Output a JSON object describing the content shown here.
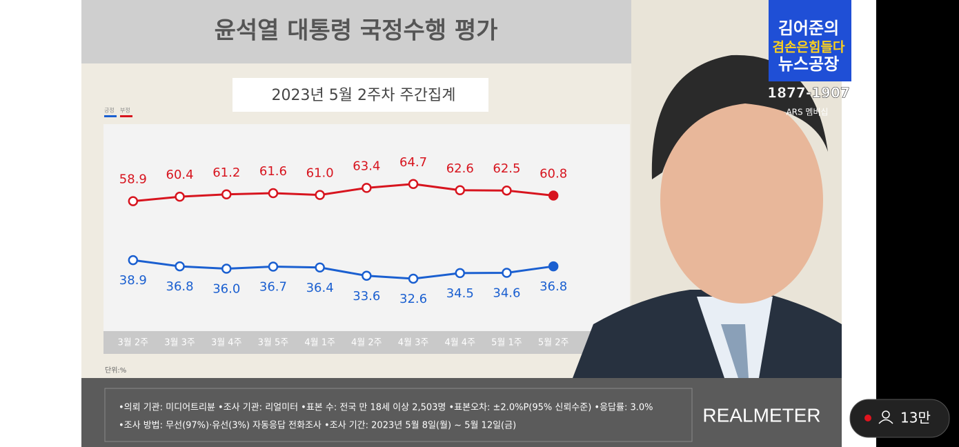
{
  "chart_data": {
    "type": "line",
    "title": "윤석열 대통령 국정수행 평가",
    "subtitle": "2023년 5월 2주차 주간집계",
    "unit_note": "단위:%",
    "categories": [
      "3월 2주",
      "3월 3주",
      "3월 4주",
      "3월 5주",
      "4월 1주",
      "4월 2주",
      "4월 3주",
      "4월 4주",
      "5월 1주",
      "5월 2주"
    ],
    "series": [
      {
        "name": "긍정",
        "color": "#1a5fd0",
        "label_side": "below",
        "values": [
          38.9,
          36.8,
          36.0,
          36.7,
          36.4,
          33.6,
          32.6,
          34.5,
          34.6,
          36.8
        ],
        "value_labels": [
          "38.9",
          "36.8",
          "36.0",
          "36.7",
          "36.4",
          "33.6",
          "32.6",
          "34.5",
          "34.6",
          "36.8"
        ]
      },
      {
        "name": "부정",
        "color": "#d7141e",
        "label_side": "above",
        "values": [
          58.9,
          60.4,
          61.2,
          61.6,
          61.0,
          63.4,
          64.7,
          62.6,
          62.5,
          60.8
        ],
        "value_labels": [
          "58.9",
          "60.4",
          "61.2",
          "61.6",
          "61.0",
          "63.4",
          "64.7",
          "62.6",
          "62.5",
          "60.8"
        ]
      }
    ],
    "ylim": [
      16,
      85
    ]
  },
  "footer": {
    "lines": [
      "•의뢰 기관: 미디어트리뷴 •조사 기관: 리얼미터 •표본 수: 전국 만 18세 이상 2,503명 •표본오차: ±2.0%P(95% 신뢰수준) •응답률: 3.0%",
      "•조사 방법: 무선(97%)·유선(3%) 자동응답 전화조사 •조사 기간: 2023년 5월 8일(월) ~ 5월 12일(금)"
    ],
    "brand": "REALMETER"
  },
  "channel": {
    "name_line1": "김어준의",
    "name_line2": "겸손은힘들다",
    "name_line3": "뉴스공장",
    "phone": "1877-1907",
    "membership": "ARS 멤버십"
  },
  "viewers": "13만"
}
